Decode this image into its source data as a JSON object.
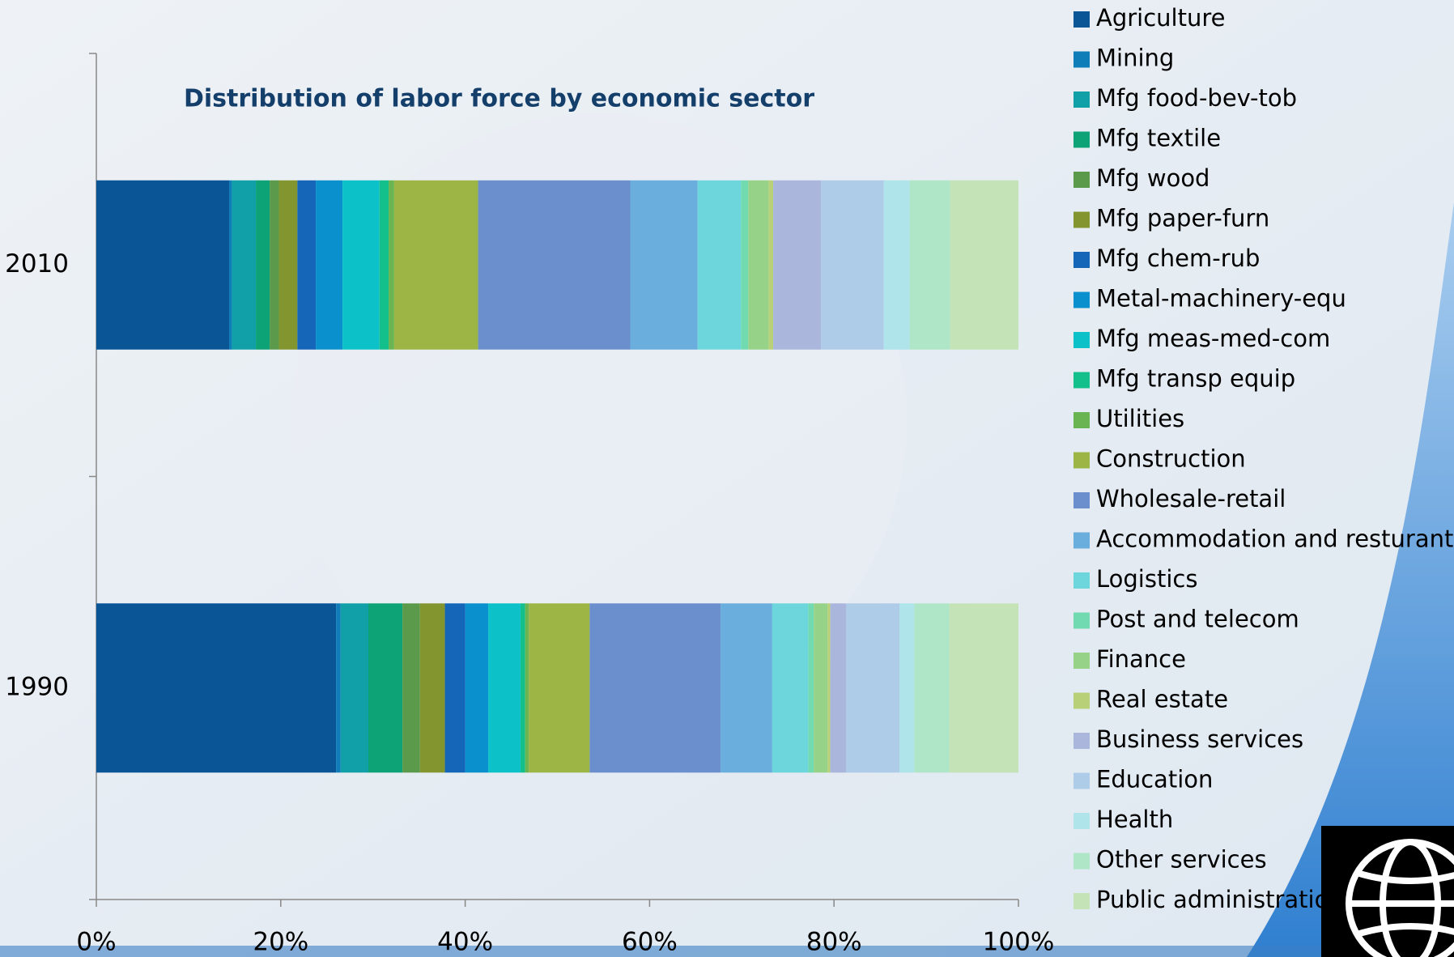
{
  "chart_data": {
    "type": "stacked-barh",
    "title": "Distribution of labor force by economic sector",
    "categories": [
      "2010",
      "1990"
    ],
    "xlim": [
      0,
      100
    ],
    "xticks": [
      {
        "value": 0,
        "label": "0%"
      },
      {
        "value": 20,
        "label": "20%"
      },
      {
        "value": 40,
        "label": "40%"
      },
      {
        "value": 60,
        "label": "60%"
      },
      {
        "value": 80,
        "label": "80%"
      },
      {
        "value": 100,
        "label": "100%"
      }
    ],
    "legend": "right",
    "series": [
      {
        "name": "Agriculture",
        "color": "#0a5596",
        "values": [
          14.4,
          26.0
        ]
      },
      {
        "name": "Mining",
        "color": "#0e7db8",
        "values": [
          0.3,
          0.5
        ]
      },
      {
        "name": "Mfg food-bev-tob",
        "color": "#12a0a8",
        "values": [
          2.6,
          3.0
        ]
      },
      {
        "name": "Mfg textile",
        "color": "#0ea277",
        "values": [
          1.5,
          3.7
        ]
      },
      {
        "name": "Mfg wood",
        "color": "#5b9a4a",
        "values": [
          1.0,
          1.9
        ]
      },
      {
        "name": "Mfg paper-furn",
        "color": "#83952e",
        "values": [
          2.0,
          2.7
        ]
      },
      {
        "name": "Mfg chem-rub",
        "color": "#1566b8",
        "values": [
          2.0,
          2.2
        ]
      },
      {
        "name": "Metal-machinery-equ",
        "color": "#0a90cc",
        "values": [
          2.9,
          2.5
        ]
      },
      {
        "name": "Mfg meas-med-com",
        "color": "#0cc2c8",
        "values": [
          4.0,
          3.5
        ]
      },
      {
        "name": "Mfg transp equip",
        "color": "#13c08c",
        "values": [
          1.0,
          0.5
        ]
      },
      {
        "name": "Utilities",
        "color": "#6ab552",
        "values": [
          0.6,
          0.4
        ]
      },
      {
        "name": "Construction",
        "color": "#9db544",
        "values": [
          9.1,
          6.6
        ]
      },
      {
        "name": "Wholesale-retail",
        "color": "#6b8fcc",
        "values": [
          16.5,
          14.2
        ]
      },
      {
        "name": "Accommodation and resturant",
        "color": "#6aaedd",
        "values": [
          7.3,
          5.6
        ]
      },
      {
        "name": "Logistics",
        "color": "#6dd6dd",
        "values": [
          4.7,
          3.9
        ]
      },
      {
        "name": "Post and telecom",
        "color": "#72dab0",
        "values": [
          0.8,
          0.6
        ]
      },
      {
        "name": "Finance",
        "color": "#96d288",
        "values": [
          2.2,
          1.5
        ]
      },
      {
        "name": "Real estate",
        "color": "#b8d078",
        "values": [
          0.5,
          0.3
        ]
      },
      {
        "name": "Business services",
        "color": "#aab6dc",
        "values": [
          5.2,
          1.7
        ]
      },
      {
        "name": "Education",
        "color": "#aecbe8",
        "values": [
          6.8,
          5.8
        ]
      },
      {
        "name": "Health",
        "color": "#aee4ea",
        "values": [
          2.8,
          1.6
        ]
      },
      {
        "name": "Other services",
        "color": "#afe6c8",
        "values": [
          4.4,
          3.8
        ]
      },
      {
        "name": "Public administration",
        "color": "#c4e4b8",
        "values": [
          7.4,
          7.5
        ]
      }
    ]
  }
}
